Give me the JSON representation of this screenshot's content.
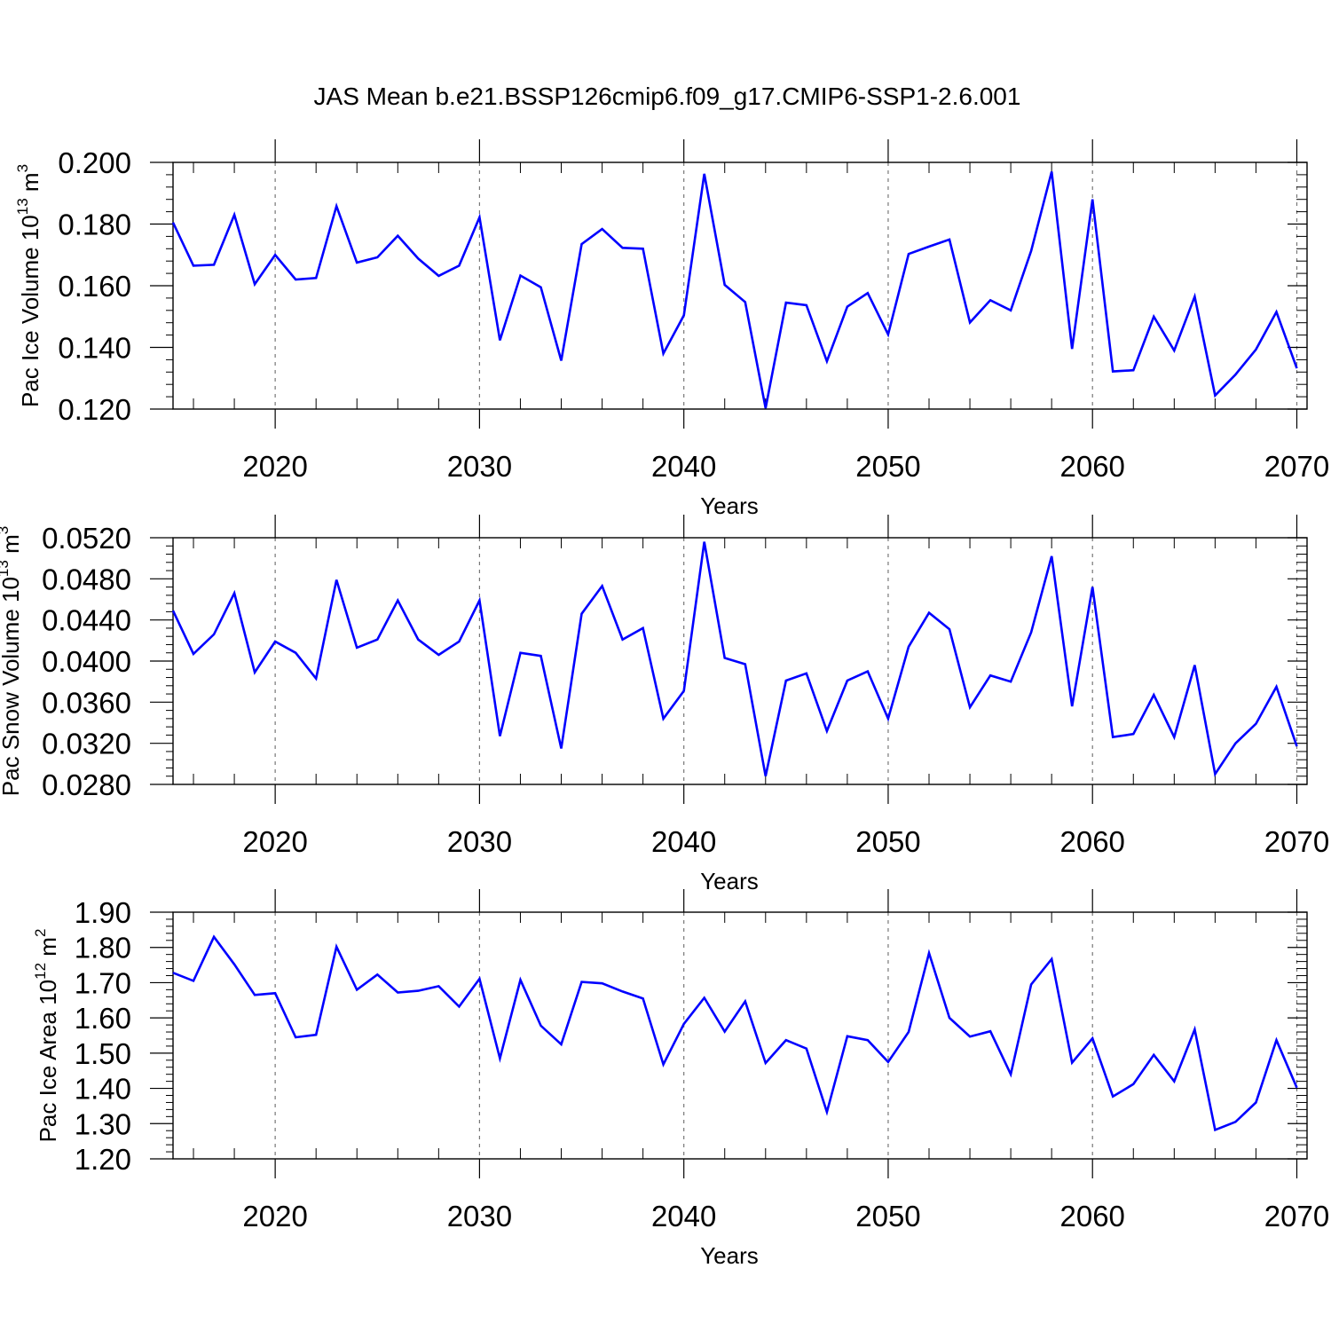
{
  "figure_title": "JAS Mean b.e21.BSSP126cmip6.f09_g17.CMIP6-SSP1-2.6.001",
  "line_color": "#0000ff",
  "chart_data": [
    {
      "type": "line",
      "name": "ice-volume",
      "title": "JAS Mean b.e21.BSSP126cmip6.f09_g17.CMIP6-SSP1-2.6.001",
      "ylabel_main": "Pac Ice Volume 10",
      "ylabel_exp": "13",
      "ylabel_unit": " m",
      "ylabel_unit_exp": "3",
      "xlabel": "Years",
      "xlim": [
        2015,
        2070.5
      ],
      "ylim": [
        0.12,
        0.2
      ],
      "grid": "vertical-dashed",
      "x_ticks": [
        "2020",
        "2030",
        "2040",
        "2050",
        "2060",
        "2070"
      ],
      "y_ticks": [
        "0.120",
        "0.140",
        "0.160",
        "0.180",
        "0.200"
      ],
      "x": [
        2015,
        2016,
        2017,
        2018,
        2019,
        2020,
        2021,
        2022,
        2023,
        2024,
        2025,
        2026,
        2027,
        2028,
        2029,
        2030,
        2031,
        2032,
        2033,
        2034,
        2035,
        2036,
        2037,
        2038,
        2039,
        2040,
        2041,
        2042,
        2043,
        2044,
        2045,
        2046,
        2047,
        2048,
        2049,
        2050,
        2051,
        2052,
        2053,
        2054,
        2055,
        2056,
        2057,
        2058,
        2059,
        2060,
        2061,
        2062,
        2063,
        2064,
        2065,
        2066,
        2067,
        2068,
        2069,
        2070
      ],
      "values": [
        0.1805,
        0.1665,
        0.1668,
        0.183,
        0.1605,
        0.17,
        0.162,
        0.1625,
        0.1858,
        0.1675,
        0.1692,
        0.1762,
        0.1688,
        0.1632,
        0.1665,
        0.1822,
        0.1423,
        0.1633,
        0.1595,
        0.1357,
        0.1735,
        0.1784,
        0.1723,
        0.172,
        0.138,
        0.1504,
        0.1963,
        0.1603,
        0.1547,
        0.1203,
        0.1545,
        0.1537,
        0.1355,
        0.1532,
        0.1576,
        0.1442,
        0.1703,
        0.1727,
        0.175,
        0.1481,
        0.1553,
        0.152,
        0.1713,
        0.197,
        0.1395,
        0.188,
        0.1322,
        0.1326,
        0.15,
        0.139,
        0.1565,
        0.1244,
        0.1312,
        0.1393,
        0.1515,
        0.1332
      ]
    },
    {
      "type": "line",
      "name": "snow-volume",
      "ylabel_main": "Pac Snow Volume 10",
      "ylabel_exp": "13",
      "ylabel_unit": " m",
      "ylabel_unit_exp": "3",
      "xlabel": "Years",
      "xlim": [
        2015,
        2070.5
      ],
      "ylim": [
        0.028,
        0.052
      ],
      "grid": "vertical-dashed",
      "x_ticks": [
        "2020",
        "2030",
        "2040",
        "2050",
        "2060",
        "2070"
      ],
      "y_ticks": [
        "0.0280",
        "0.0320",
        "0.0360",
        "0.0400",
        "0.0440",
        "0.0480",
        "0.0520"
      ],
      "x": [
        2015,
        2016,
        2017,
        2018,
        2019,
        2020,
        2021,
        2022,
        2023,
        2024,
        2025,
        2026,
        2027,
        2028,
        2029,
        2030,
        2031,
        2032,
        2033,
        2034,
        2035,
        2036,
        2037,
        2038,
        2039,
        2040,
        2041,
        2042,
        2043,
        2044,
        2045,
        2046,
        2047,
        2048,
        2049,
        2050,
        2051,
        2052,
        2053,
        2054,
        2055,
        2056,
        2057,
        2058,
        2059,
        2060,
        2061,
        2062,
        2063,
        2064,
        2065,
        2066,
        2067,
        2068,
        2069,
        2070
      ],
      "values": [
        0.0449,
        0.0407,
        0.0426,
        0.0466,
        0.0389,
        0.0419,
        0.0408,
        0.0383,
        0.0479,
        0.0413,
        0.0421,
        0.0459,
        0.0421,
        0.0406,
        0.0419,
        0.0459,
        0.0327,
        0.0408,
        0.0405,
        0.0315,
        0.0446,
        0.0473,
        0.0421,
        0.0432,
        0.0344,
        0.0371,
        0.0516,
        0.0403,
        0.0397,
        0.0288,
        0.0381,
        0.0388,
        0.0332,
        0.0381,
        0.039,
        0.0344,
        0.0414,
        0.0447,
        0.0431,
        0.0355,
        0.0386,
        0.038,
        0.0428,
        0.0502,
        0.0356,
        0.0472,
        0.0326,
        0.0329,
        0.0367,
        0.0326,
        0.0396,
        0.029,
        0.032,
        0.0339,
        0.0375,
        0.0317
      ]
    },
    {
      "type": "line",
      "name": "ice-area",
      "ylabel_main": "Pac Ice Area 10",
      "ylabel_exp": "12",
      "ylabel_unit": " m",
      "ylabel_unit_exp": "2",
      "xlabel": "Years",
      "xlim": [
        2015,
        2070.5
      ],
      "ylim": [
        1.2,
        1.9
      ],
      "grid": "vertical-dashed",
      "x_ticks": [
        "2020",
        "2030",
        "2040",
        "2050",
        "2060",
        "2070"
      ],
      "y_ticks": [
        "1.20",
        "1.30",
        "1.40",
        "1.50",
        "1.60",
        "1.70",
        "1.80",
        "1.90"
      ],
      "x": [
        2015,
        2016,
        2017,
        2018,
        2019,
        2020,
        2021,
        2022,
        2023,
        2024,
        2025,
        2026,
        2027,
        2028,
        2029,
        2030,
        2031,
        2032,
        2033,
        2034,
        2035,
        2036,
        2037,
        2038,
        2039,
        2040,
        2041,
        2042,
        2043,
        2044,
        2045,
        2046,
        2047,
        2048,
        2049,
        2050,
        2051,
        2052,
        2053,
        2054,
        2055,
        2056,
        2057,
        2058,
        2059,
        2060,
        2061,
        2062,
        2063,
        2064,
        2065,
        2066,
        2067,
        2068,
        2069,
        2070
      ],
      "values": [
        1.728,
        1.705,
        1.83,
        1.752,
        1.665,
        1.67,
        1.545,
        1.552,
        1.802,
        1.68,
        1.723,
        1.672,
        1.677,
        1.69,
        1.632,
        1.711,
        1.485,
        1.708,
        1.578,
        1.525,
        1.702,
        1.698,
        1.675,
        1.655,
        1.468,
        1.583,
        1.657,
        1.561,
        1.647,
        1.472,
        1.537,
        1.513,
        1.333,
        1.548,
        1.537,
        1.475,
        1.56,
        1.784,
        1.6,
        1.547,
        1.562,
        1.44,
        1.695,
        1.767,
        1.473,
        1.542,
        1.377,
        1.412,
        1.495,
        1.42,
        1.567,
        1.282,
        1.305,
        1.36,
        1.537,
        1.402
      ]
    }
  ]
}
